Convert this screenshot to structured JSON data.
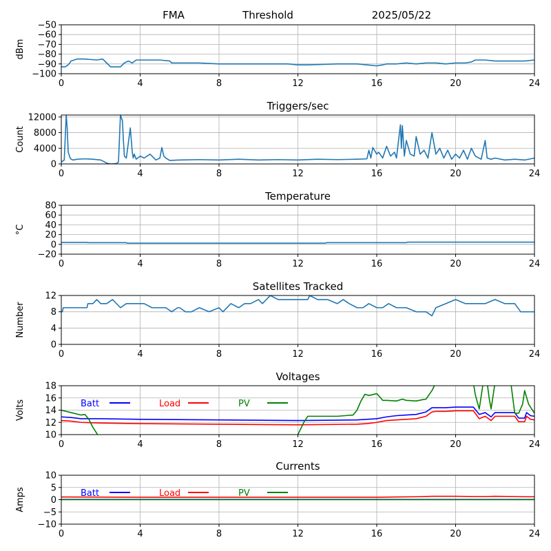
{
  "header": {
    "station": "FMA",
    "mode": "Threshold",
    "date": "2025/05/22"
  },
  "colors": {
    "default_series": "#1f77b4",
    "batt": "#0000ff",
    "load": "#ff0000",
    "pv": "#008000"
  },
  "chart_data": [
    {
      "type": "line",
      "title": "",
      "ylabel": "dBm",
      "xlim": [
        0,
        24
      ],
      "ylim": [
        -100,
        -50
      ],
      "x_ticks": [
        0,
        4,
        8,
        12,
        16,
        20,
        24
      ],
      "y_ticks": [
        -100,
        -90,
        -80,
        -70,
        -60,
        -50
      ],
      "y_tick_labels": [
        "−100",
        "−90",
        "−80",
        "−70",
        "−60",
        "−50"
      ],
      "grid": true,
      "series": [
        {
          "name": "",
          "color": "#1f77b4",
          "x": [
            0,
            0.2,
            0.35,
            0.5,
            0.8,
            1.2,
            1.8,
            2.1,
            2.3,
            2.5,
            2.8,
            3.0,
            3.2,
            3.4,
            3.6,
            3.8,
            4.0,
            4.5,
            5.0,
            5.5,
            5.6,
            7.0,
            8.0,
            10.0,
            11.5,
            12.0,
            12.5,
            14.0,
            15.0,
            15.5,
            16.0,
            16.3,
            16.5,
            17.0,
            17.5,
            18.0,
            18.5,
            19.0,
            19.5,
            20.0,
            20.5,
            20.8,
            21.0,
            21.5,
            22.0,
            23.0,
            23.5,
            24.0
          ],
          "y": [
            -93,
            -93,
            -91,
            -87,
            -85,
            -85,
            -86,
            -85,
            -89,
            -93,
            -93,
            -93,
            -89,
            -87,
            -89,
            -86,
            -86,
            -86,
            -86,
            -87,
            -89,
            -89,
            -90,
            -90,
            -90,
            -91,
            -91,
            -90,
            -90,
            -91,
            -92,
            -91,
            -90,
            -90,
            -89,
            -90,
            -89,
            -89,
            -90,
            -89,
            -89,
            -88,
            -86,
            -86,
            -87,
            -87,
            -87,
            -86
          ]
        }
      ]
    },
    {
      "type": "line",
      "title": "Triggers/sec",
      "ylabel": "Count",
      "xlim": [
        0,
        24
      ],
      "ylim": [
        0,
        12500
      ],
      "x_ticks": [
        0,
        4,
        8,
        12,
        16,
        20,
        24
      ],
      "y_ticks": [
        0,
        4000,
        8000,
        12000
      ],
      "y_tick_labels": [
        "0",
        "4000",
        "8000",
        "12000"
      ],
      "grid": true,
      "series": [
        {
          "name": "",
          "color": "#1f77b4",
          "x": [
            0,
            0.15,
            0.25,
            0.3,
            0.35,
            0.45,
            0.5,
            0.6,
            0.8,
            1.2,
            1.6,
            2.0,
            2.2,
            2.3,
            2.5,
            2.8,
            2.9,
            3.0,
            3.1,
            3.15,
            3.2,
            3.3,
            3.5,
            3.6,
            3.65,
            3.7,
            3.8,
            4.0,
            4.2,
            4.5,
            4.8,
            5.0,
            5.1,
            5.2,
            5.3,
            5.5,
            6.0,
            7.0,
            8.0,
            9.0,
            10.0,
            11.0,
            12.0,
            13.0,
            14.0,
            15.0,
            15.5,
            15.6,
            15.7,
            15.8,
            16.0,
            16.1,
            16.3,
            16.5,
            16.7,
            16.9,
            17.0,
            17.2,
            17.25,
            17.3,
            17.4,
            17.5,
            17.7,
            17.9,
            18.0,
            18.2,
            18.4,
            18.6,
            18.8,
            19.0,
            19.2,
            19.4,
            19.6,
            19.8,
            20.0,
            20.2,
            20.4,
            20.6,
            20.8,
            21.0,
            21.3,
            21.5,
            21.6,
            21.8,
            22.0,
            22.5,
            23.0,
            23.5,
            24.0
          ],
          "y": [
            500,
            1000,
            12500,
            9000,
            3000,
            1500,
            1200,
            1000,
            1200,
            1300,
            1200,
            1000,
            500,
            200,
            0,
            100,
            500,
            12500,
            11000,
            6000,
            2000,
            1500,
            9200,
            3000,
            1500,
            2500,
            1200,
            2000,
            1500,
            2500,
            1000,
            1500,
            4200,
            2000,
            1500,
            900,
            1000,
            1100,
            1000,
            1200,
            1000,
            1100,
            1000,
            1200,
            1100,
            1200,
            1300,
            3500,
            1500,
            4200,
            2500,
            3000,
            1500,
            4500,
            2000,
            3000,
            1500,
            10000,
            4000,
            9800,
            2000,
            6000,
            2500,
            2000,
            7000,
            2500,
            3500,
            1500,
            8000,
            2500,
            4000,
            1500,
            3500,
            1200,
            2500,
            1500,
            3500,
            1200,
            4000,
            2000,
            1200,
            6000,
            1500,
            1200,
            1500,
            1000,
            1200,
            1000,
            1500
          ]
        }
      ]
    },
    {
      "type": "line",
      "title": "Temperature",
      "ylabel": "°C",
      "xlim": [
        0,
        24
      ],
      "ylim": [
        -20,
        80
      ],
      "x_ticks": [
        0,
        4,
        8,
        12,
        16,
        20,
        24
      ],
      "y_ticks": [
        -20,
        0,
        20,
        40,
        60,
        80
      ],
      "y_tick_labels": [
        "−20",
        "0",
        "20",
        "40",
        "60",
        "80"
      ],
      "grid": true,
      "series": [
        {
          "name": "",
          "color": "#1f77b4",
          "x": [
            0,
            1.3,
            1.35,
            3.3,
            3.35,
            13.4,
            13.45,
            17.5,
            17.55,
            24.0
          ],
          "y": [
            4,
            4,
            3.5,
            3.5,
            2.5,
            2.5,
            3.5,
            3.5,
            4.5,
            4.5
          ]
        }
      ]
    },
    {
      "type": "line",
      "title": "Satellites Tracked",
      "ylabel": "Number",
      "xlim": [
        0,
        24
      ],
      "ylim": [
        0,
        12
      ],
      "x_ticks": [
        0,
        4,
        8,
        12,
        16,
        20,
        24
      ],
      "y_ticks": [
        0,
        4,
        8,
        12
      ],
      "y_tick_labels": [
        "0",
        "4",
        "8",
        "12"
      ],
      "grid": true,
      "series": [
        {
          "name": "",
          "color": "#1f77b4",
          "x": [
            0,
            0.05,
            0.1,
            0.35,
            0.4,
            1.3,
            1.35,
            1.6,
            1.8,
            2.0,
            2.3,
            2.6,
            3.0,
            3.3,
            3.6,
            4.2,
            4.6,
            4.8,
            5.0,
            5.3,
            5.6,
            5.9,
            6.0,
            6.3,
            6.6,
            7.0,
            7.5,
            8.0,
            8.2,
            8.6,
            9.0,
            9.3,
            9.6,
            10.0,
            10.2,
            10.4,
            10.6,
            11.0,
            11.5,
            12.0,
            12.5,
            12.6,
            13.0,
            13.5,
            14.0,
            14.3,
            14.6,
            15.0,
            15.3,
            15.6,
            16.0,
            16.3,
            16.6,
            17.0,
            17.5,
            18.0,
            18.5,
            18.8,
            19.0,
            19.5,
            20.0,
            20.5,
            21.0,
            21.5,
            22.0,
            22.5,
            23.0,
            23.3,
            24.0
          ],
          "y": [
            8,
            8,
            9,
            9,
            9,
            9,
            10,
            10,
            11,
            10,
            10,
            11,
            9,
            10,
            10,
            10,
            9,
            9,
            9,
            9,
            8,
            9,
            9,
            8,
            8,
            9,
            8,
            9,
            8,
            10,
            9,
            10,
            10,
            11,
            10,
            11,
            12,
            11,
            11,
            11,
            11,
            12,
            11,
            11,
            10,
            11,
            10,
            9,
            9,
            10,
            9,
            9,
            10,
            9,
            9,
            8,
            8,
            7,
            9,
            10,
            11,
            10,
            10,
            10,
            11,
            10,
            10,
            8,
            8
          ]
        }
      ]
    },
    {
      "type": "line",
      "title": "Voltages",
      "ylabel": "Volts",
      "xlim": [
        0,
        24
      ],
      "ylim": [
        10,
        18
      ],
      "x_ticks": [
        0,
        4,
        8,
        12,
        16,
        20,
        24
      ],
      "y_ticks": [
        10,
        12,
        14,
        16,
        18
      ],
      "y_tick_labels": [
        "10",
        "12",
        "14",
        "16",
        "18"
      ],
      "grid": true,
      "legend": "top-left",
      "series": [
        {
          "name": "Batt",
          "color": "#0000ff",
          "x": [
            0,
            0.5,
            1.0,
            2.0,
            4.0,
            8.0,
            12.0,
            15.0,
            15.5,
            16.0,
            16.5,
            17.0,
            17.5,
            18.0,
            18.5,
            18.8,
            19.0,
            19.5,
            20.0,
            20.5,
            20.9,
            21.2,
            21.5,
            21.8,
            22.0,
            22.5,
            23.0,
            23.2,
            23.5,
            23.6,
            23.8,
            24.0
          ],
          "y": [
            12.9,
            12.8,
            12.6,
            12.6,
            12.5,
            12.4,
            12.3,
            12.4,
            12.5,
            12.6,
            12.9,
            13.1,
            13.2,
            13.3,
            13.7,
            14.4,
            14.4,
            14.4,
            14.5,
            14.5,
            14.5,
            13.3,
            13.6,
            12.9,
            13.6,
            13.6,
            13.6,
            12.7,
            12.7,
            13.6,
            13.1,
            13.0
          ]
        },
        {
          "name": "Load",
          "color": "#ff0000",
          "x": [
            0,
            0.5,
            1.0,
            2.0,
            4.0,
            8.0,
            12.0,
            15.0,
            15.5,
            16.0,
            16.5,
            17.0,
            17.5,
            18.0,
            18.5,
            18.8,
            19.0,
            19.5,
            20.0,
            20.5,
            20.9,
            21.2,
            21.5,
            21.8,
            22.0,
            22.5,
            23.0,
            23.2,
            23.5,
            23.6,
            23.8,
            24.0
          ],
          "y": [
            12.3,
            12.2,
            12.0,
            11.9,
            11.8,
            11.7,
            11.6,
            11.7,
            11.8,
            12.0,
            12.3,
            12.4,
            12.5,
            12.6,
            13.0,
            13.7,
            13.8,
            13.8,
            13.9,
            13.9,
            13.9,
            12.6,
            13.0,
            12.3,
            13.0,
            13.0,
            13.0,
            12.1,
            12.1,
            13.0,
            12.5,
            12.4
          ]
        },
        {
          "name": "PV",
          "color": "#008000",
          "x": [
            0,
            0.5,
            1.0,
            1.2,
            1.4,
            1.6,
            1.8,
            2.0,
            11.9,
            12.0,
            12.3,
            12.5,
            13.0,
            14.0,
            14.8,
            15.0,
            15.2,
            15.4,
            15.6,
            16.0,
            16.2,
            16.3,
            16.5,
            17.0,
            17.3,
            17.5,
            18.0,
            18.3,
            18.5,
            18.8,
            19.0,
            20.8,
            20.9,
            21.0,
            21.2,
            21.4,
            21.5,
            21.6,
            21.7,
            21.8,
            22.0,
            22.5,
            22.6,
            22.8,
            23.0,
            23.2,
            23.4,
            23.5,
            23.7,
            24.0
          ],
          "y": [
            14.0,
            13.6,
            13.2,
            13.3,
            12.5,
            11.2,
            10.2,
            9.0,
            9.0,
            10.0,
            12.0,
            13.0,
            13.0,
            13.0,
            13.2,
            14.0,
            15.5,
            16.6,
            16.4,
            16.7,
            16.0,
            15.6,
            15.6,
            15.5,
            15.8,
            15.6,
            15.5,
            15.7,
            15.8,
            17.2,
            18.5,
            18.5,
            18.5,
            16.5,
            14.2,
            18.5,
            18.5,
            18.5,
            16.0,
            14.2,
            18.5,
            18.5,
            18.5,
            18.5,
            13.5,
            13.5,
            15.0,
            17.2,
            15.0,
            13.5
          ]
        }
      ]
    },
    {
      "type": "line",
      "title": "Currents",
      "ylabel": "Amps",
      "xlim": [
        0,
        24
      ],
      "ylim": [
        -10,
        10
      ],
      "x_ticks": [
        0,
        4,
        8,
        12,
        16,
        20,
        24
      ],
      "y_ticks": [
        -10,
        -5,
        0,
        5,
        10
      ],
      "y_tick_labels": [
        "−10",
        "−5",
        "0",
        "5",
        "10"
      ],
      "grid": true,
      "legend": "top-left",
      "series": [
        {
          "name": "Batt",
          "color": "#0000ff",
          "x": [
            0,
            24
          ],
          "y": [
            0.1,
            0.1
          ]
        },
        {
          "name": "Load",
          "color": "#ff0000",
          "x": [
            0,
            4,
            8,
            12,
            15,
            16,
            17,
            18,
            18.8,
            19,
            20,
            21,
            21.5,
            22,
            23,
            23.5,
            24
          ],
          "y": [
            1.1,
            1.0,
            1.0,
            1.0,
            1.0,
            1.0,
            1.1,
            1.2,
            1.4,
            1.4,
            1.4,
            1.3,
            1.3,
            1.4,
            1.3,
            1.2,
            1.2
          ]
        },
        {
          "name": "PV",
          "color": "#008000",
          "x": [
            0,
            24
          ],
          "y": [
            0.0,
            0.0
          ]
        }
      ]
    }
  ]
}
